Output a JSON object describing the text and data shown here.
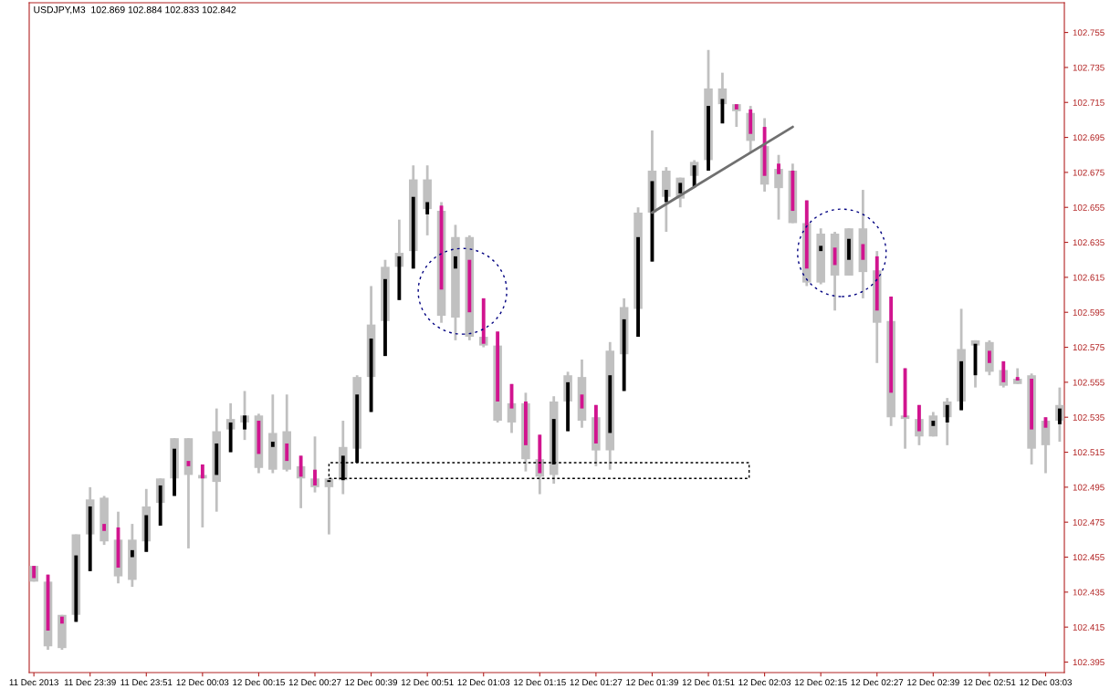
{
  "chart_data": {
    "type": "candlestick",
    "title": "USDJPY,M3  102.869 102.884 102.833 102.842",
    "x": [
      "2013-12-11T23:27",
      "2013-12-11T23:30",
      "2013-12-11T23:33",
      "2013-12-11T23:36",
      "2013-12-11T23:39",
      "2013-12-11T23:42",
      "2013-12-11T23:45",
      "2013-12-11T23:48",
      "2013-12-11T23:51",
      "2013-12-11T23:54",
      "2013-12-11T23:57",
      "2013-12-12T00:00",
      "2013-12-12T00:03",
      "2013-12-12T00:06",
      "2013-12-12T00:09",
      "2013-12-12T00:12",
      "2013-12-12T00:15",
      "2013-12-12T00:18",
      "2013-12-12T00:21",
      "2013-12-12T00:24",
      "2013-12-12T00:27",
      "2013-12-12T00:30",
      "2013-12-12T00:33",
      "2013-12-12T00:36",
      "2013-12-12T00:39",
      "2013-12-12T00:42",
      "2013-12-12T00:45",
      "2013-12-12T00:48",
      "2013-12-12T00:51",
      "2013-12-12T00:54",
      "2013-12-12T00:57",
      "2013-12-12T01:00",
      "2013-12-12T01:03",
      "2013-12-12T01:06",
      "2013-12-12T01:09",
      "2013-12-12T01:12",
      "2013-12-12T01:15",
      "2013-12-12T01:18",
      "2013-12-12T01:21",
      "2013-12-12T01:24",
      "2013-12-12T01:27",
      "2013-12-12T01:30",
      "2013-12-12T01:33",
      "2013-12-12T01:36",
      "2013-12-12T01:39",
      "2013-12-12T01:42",
      "2013-12-12T01:45",
      "2013-12-12T01:48",
      "2013-12-12T01:51",
      "2013-12-12T01:54",
      "2013-12-12T01:57",
      "2013-12-12T02:00",
      "2013-12-12T02:03",
      "2013-12-12T02:06",
      "2013-12-12T02:09",
      "2013-12-12T02:12",
      "2013-12-12T02:15",
      "2013-12-12T02:18",
      "2013-12-12T02:21",
      "2013-12-12T02:24",
      "2013-12-12T02:27",
      "2013-12-12T02:30",
      "2013-12-12T02:33",
      "2013-12-12T02:36",
      "2013-12-12T02:39",
      "2013-12-12T02:42",
      "2013-12-12T02:45",
      "2013-12-12T02:48",
      "2013-12-12T02:51",
      "2013-12-12T02:54",
      "2013-12-12T02:57",
      "2013-12-12T03:00",
      "2013-12-12T03:03",
      "2013-12-12T03:06"
    ],
    "series": [
      {
        "type": "bar",
        "color": "#c0c0c0",
        "base": [
          102.441,
          102.404,
          102.403,
          102.422,
          102.468,
          102.464,
          102.444,
          102.442,
          102.464,
          102.486,
          102.5,
          102.502,
          102.5,
          102.498,
          102.528,
          102.532,
          102.506,
          102.505,
          102.505,
          102.5,
          102.495,
          102.495,
          102.499,
          102.517,
          102.558,
          102.59,
          102.621,
          102.63,
          102.654,
          102.593,
          102.592,
          102.581,
          102.576,
          102.533,
          102.532,
          102.511,
          102.501,
          102.502,
          102.544,
          102.533,
          102.516,
          102.516,
          102.571,
          102.597,
          102.652,
          102.661,
          102.66,
          102.673,
          102.682,
          102.714,
          102.71,
          102.693,
          102.668,
          102.666,
          102.646,
          102.612,
          102.612,
          102.616,
          102.616,
          102.618,
          102.589,
          102.535,
          102.534,
          102.524,
          102.524,
          102.535,
          102.544,
          102.576,
          102.561,
          102.553,
          102.554,
          102.517,
          102.519,
          102.533
        ],
        "values": [
          0.009,
          0.037,
          0.019,
          0.046,
          0.02,
          0.025,
          0.021,
          0.023,
          0.02,
          0.014,
          0.023,
          0.021,
          0.002,
          0.029,
          0.006,
          0.004,
          0.03,
          0.021,
          0.022,
          0.007,
          0.005,
          0.005,
          0.019,
          0.041,
          0.03,
          0.031,
          0.008,
          0.041,
          0.017,
          0.06,
          0.046,
          0.057,
          0.005,
          0.043,
          0.011,
          0.032,
          0.01,
          0.042,
          0.015,
          0.025,
          0.019,
          0.057,
          0.027,
          0.055,
          0.024,
          0.015,
          0.012,
          0.008,
          0.041,
          0.009,
          0.004,
          0.016,
          0.022,
          0.011,
          0.03,
          0.034,
          0.028,
          0.024,
          0.027,
          0.025,
          0.03,
          0.055,
          0.002,
          0.01,
          0.012,
          0.009,
          0.03,
          0.003,
          0.017,
          0.009,
          0.003,
          0.042,
          0.014,
          0.009
        ]
      },
      {
        "type": "candlestick",
        "color": "#c0c0c0",
        "ohlc": [
          [
            102.45,
            102.45,
            102.441,
            102.443
          ],
          [
            102.445,
            102.445,
            102.402,
            102.413
          ],
          [
            102.421,
            102.422,
            102.402,
            102.417
          ],
          [
            102.418,
            102.468,
            102.418,
            102.456
          ],
          [
            102.447,
            102.495,
            102.447,
            102.484
          ],
          [
            102.474,
            102.49,
            102.462,
            102.47
          ],
          [
            102.472,
            102.481,
            102.44,
            102.449
          ],
          [
            102.455,
            102.474,
            102.438,
            102.459
          ],
          [
            102.458,
            102.494,
            102.458,
            102.479
          ],
          [
            102.473,
            102.5,
            102.473,
            102.496
          ],
          [
            102.49,
            102.523,
            102.49,
            102.517
          ],
          [
            102.51,
            102.523,
            102.46,
            102.507
          ],
          [
            102.508,
            102.508,
            102.472,
            102.5
          ],
          [
            102.502,
            102.54,
            102.481,
            102.52
          ],
          [
            102.515,
            102.543,
            102.515,
            102.532
          ],
          [
            102.528,
            102.55,
            102.522,
            102.536
          ],
          [
            102.533,
            102.537,
            102.503,
            102.514
          ],
          [
            102.518,
            102.548,
            102.503,
            102.521
          ],
          [
            102.52,
            102.548,
            102.504,
            102.51
          ],
          [
            102.513,
            102.513,
            102.483,
            102.501
          ],
          [
            102.505,
            102.524,
            102.492,
            102.496
          ],
          [
            102.498,
            102.5,
            102.468,
            102.499
          ],
          [
            102.499,
            102.533,
            102.491,
            102.513
          ],
          [
            102.509,
            102.559,
            102.509,
            102.548
          ],
          [
            102.538,
            102.61,
            102.538,
            102.58
          ],
          [
            102.57,
            102.625,
            102.57,
            102.614
          ],
          [
            102.602,
            102.648,
            102.602,
            102.627
          ],
          [
            102.62,
            102.679,
            102.62,
            102.661
          ],
          [
            102.651,
            102.679,
            102.639,
            102.658
          ],
          [
            102.656,
            102.658,
            102.589,
            102.608
          ],
          [
            102.62,
            102.645,
            102.579,
            102.627
          ],
          [
            102.625,
            102.639,
            102.579,
            102.595
          ],
          [
            102.603,
            102.603,
            102.575,
            102.577
          ],
          [
            102.584,
            102.584,
            102.532,
            102.544
          ],
          [
            102.554,
            102.554,
            102.526,
            102.54
          ],
          [
            102.544,
            102.549,
            102.504,
            102.519
          ],
          [
            102.525,
            102.525,
            102.491,
            102.503
          ],
          [
            102.508,
            102.547,
            102.497,
            102.534
          ],
          [
            102.527,
            102.561,
            102.527,
            102.555
          ],
          [
            102.548,
            102.568,
            102.529,
            102.54
          ],
          [
            102.542,
            102.542,
            102.507,
            102.52
          ],
          [
            102.526,
            102.578,
            102.505,
            102.559
          ],
          [
            102.55,
            102.603,
            102.55,
            102.591
          ],
          [
            102.581,
            102.655,
            102.581,
            102.638
          ],
          [
            102.624,
            102.699,
            102.624,
            102.67
          ],
          [
            102.658,
            102.678,
            102.641,
            102.665
          ],
          [
            102.663,
            102.672,
            102.655,
            102.669
          ],
          [
            102.667,
            102.682,
            102.667,
            102.679
          ],
          [
            102.676,
            102.745,
            102.676,
            102.713
          ],
          [
            102.703,
            102.732,
            102.703,
            102.717
          ],
          [
            102.714,
            102.714,
            102.701,
            102.711
          ],
          [
            102.711,
            102.713,
            102.686,
            102.697
          ],
          [
            102.701,
            102.706,
            102.664,
            102.673
          ],
          [
            102.68,
            102.685,
            102.648,
            102.674
          ],
          [
            102.676,
            102.68,
            102.646,
            102.653
          ],
          [
            102.659,
            102.659,
            102.61,
            102.62
          ],
          [
            102.63,
            102.643,
            102.611,
            102.633
          ],
          [
            102.632,
            102.641,
            102.596,
            102.622
          ],
          [
            102.625,
            102.643,
            102.616,
            102.637
          ],
          [
            102.634,
            102.665,
            102.603,
            102.625
          ],
          [
            102.627,
            102.63,
            102.566,
            102.596
          ],
          [
            102.604,
            102.604,
            102.53,
            102.549
          ],
          [
            102.563,
            102.563,
            102.517,
            102.535
          ],
          [
            102.542,
            102.542,
            102.519,
            102.527
          ],
          [
            102.53,
            102.538,
            102.524,
            102.533
          ],
          [
            102.532,
            102.546,
            102.519,
            102.542
          ],
          [
            102.539,
            102.597,
            102.539,
            102.567
          ],
          [
            102.559,
            102.579,
            102.552,
            102.577
          ],
          [
            102.573,
            102.579,
            102.559,
            102.566
          ],
          [
            102.567,
            102.567,
            102.552,
            102.555
          ],
          [
            102.558,
            102.563,
            102.554,
            102.556
          ],
          [
            102.557,
            102.56,
            102.508,
            102.528
          ],
          [
            102.535,
            102.535,
            102.503,
            102.529
          ],
          [
            102.531,
            102.552,
            102.521,
            102.54
          ]
        ],
        "colors": [
          "#d1148f",
          "#d1148f",
          "#d1148f",
          "#000000",
          "#000000",
          "#d1148f",
          "#d1148f",
          "#000000",
          "#000000",
          "#000000",
          "#000000",
          "#d1148f",
          "#d1148f",
          "#000000",
          "#000000",
          "#000000",
          "#d1148f",
          "#000000",
          "#d1148f",
          "#d1148f",
          "#d1148f",
          "#000000",
          "#000000",
          "#000000",
          "#000000",
          "#000000",
          "#000000",
          "#000000",
          "#000000",
          "#d1148f",
          "#000000",
          "#d1148f",
          "#d1148f",
          "#d1148f",
          "#d1148f",
          "#d1148f",
          "#d1148f",
          "#000000",
          "#000000",
          "#d1148f",
          "#d1148f",
          "#000000",
          "#000000",
          "#000000",
          "#000000",
          "#000000",
          "#000000",
          "#000000",
          "#000000",
          "#000000",
          "#d1148f",
          "#d1148f",
          "#d1148f",
          "#d1148f",
          "#d1148f",
          "#d1148f",
          "#000000",
          "#d1148f",
          "#000000",
          "#d1148f",
          "#d1148f",
          "#d1148f",
          "#d1148f",
          "#d1148f",
          "#000000",
          "#000000",
          "#000000",
          "#000000",
          "#d1148f",
          "#d1148f",
          "#d1148f",
          "#d1148f",
          "#d1148f",
          "#000000"
        ]
      },
      {
        "type": "line",
        "color": "#707070",
        "x": [
          "2013-12-12T01:39",
          "2013-12-12T02:09"
        ],
        "values": [
          102.652,
          102.701
        ]
      }
    ],
    "xlim": [
      "2013-12-11T23:26",
      "2013-12-12T03:07"
    ],
    "xticks": [
      {
        "value": "2013-12-11T23:27",
        "label": "11 Dec 2013"
      },
      {
        "value": "2013-12-11T23:39",
        "label": "11 Dec 23:39"
      },
      {
        "value": "2013-12-11T23:51",
        "label": "11 Dec 23:51"
      },
      {
        "value": "2013-12-12T00:03",
        "label": "12 Dec 00:03"
      },
      {
        "value": "2013-12-12T00:15",
        "label": "12 Dec 00:15"
      },
      {
        "value": "2013-12-12T00:27",
        "label": "12 Dec 00:27"
      },
      {
        "value": "2013-12-12T00:39",
        "label": "12 Dec 00:39"
      },
      {
        "value": "2013-12-12T00:51",
        "label": "12 Dec 00:51"
      },
      {
        "value": "2013-12-12T01:03",
        "label": "12 Dec 01:03"
      },
      {
        "value": "2013-12-12T01:15",
        "label": "12 Dec 01:15"
      },
      {
        "value": "2013-12-12T01:27",
        "label": "12 Dec 01:27"
      },
      {
        "value": "2013-12-12T01:39",
        "label": "12 Dec 01:39"
      },
      {
        "value": "2013-12-12T01:51",
        "label": "12 Dec 01:51"
      },
      {
        "value": "2013-12-12T02:03",
        "label": "12 Dec 02:03"
      },
      {
        "value": "2013-12-12T02:15",
        "label": "12 Dec 02:15"
      },
      {
        "value": "2013-12-12T02:27",
        "label": "12 Dec 02:27"
      },
      {
        "value": "2013-12-12T02:39",
        "label": "12 Dec 02:39"
      },
      {
        "value": "2013-12-12T02:51",
        "label": "12 Dec 02:51"
      },
      {
        "value": "2013-12-12T03:03",
        "label": "12 Dec 03:03"
      }
    ],
    "ylim": [
      102.389,
      102.772
    ],
    "yticks": [
      102.395,
      102.415,
      102.435,
      102.455,
      102.475,
      102.495,
      102.515,
      102.535,
      102.555,
      102.575,
      102.595,
      102.615,
      102.635,
      102.655,
      102.675,
      102.695,
      102.715,
      102.735,
      102.755
    ],
    "grid": false
  }
}
